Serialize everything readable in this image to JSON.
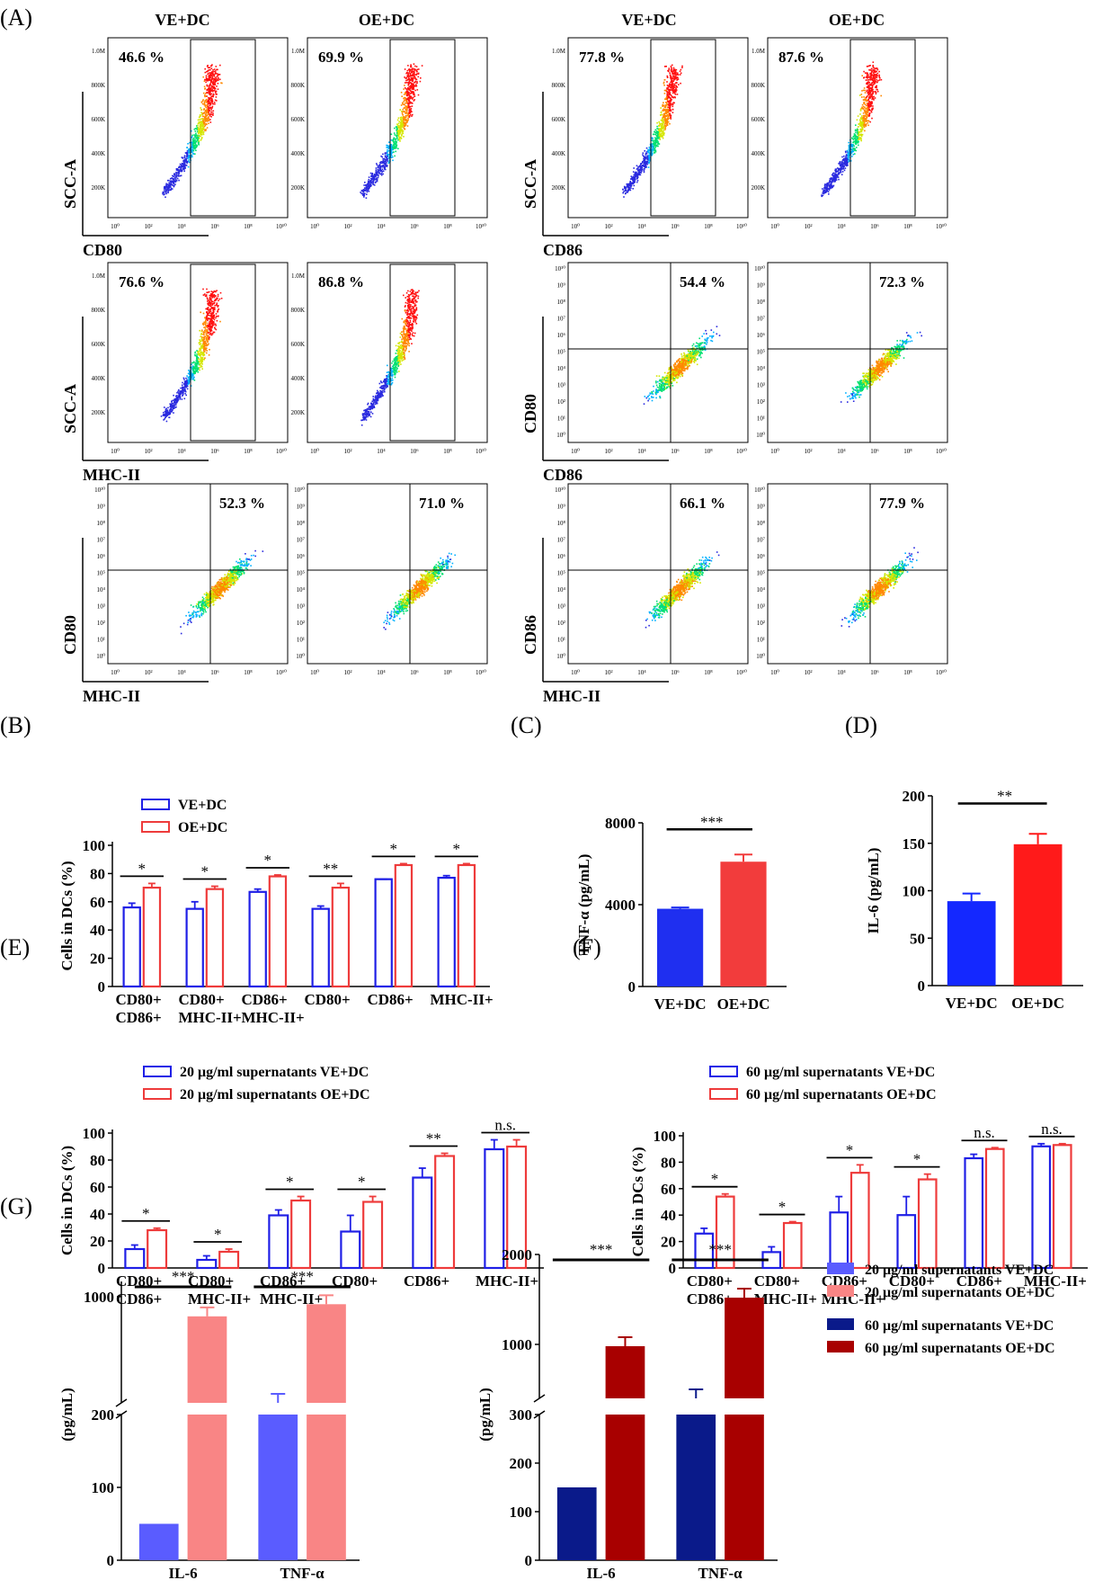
{
  "panel_labels": {
    "A": "(A)",
    "B": "(B)",
    "C": "(C)",
    "D": "(D)",
    "E": "(E)",
    "F": "(F)",
    "G": "(G)"
  },
  "colors": {
    "ve_blue": "#1f1fe6",
    "oe_red": "#ee3b3b",
    "c_blue": "#1f2ff0",
    "c_red": "#f23c3c",
    "d_blue": "#1428ff",
    "d_red": "#ff1a1a",
    "g20_ve": "#5a5cff",
    "g20_oe": "#f98585",
    "g60_ve": "#0a1a8a",
    "g60_oe": "#a80000",
    "flow_dots": "#2a2adf"
  },
  "flow": {
    "group_left": "VE+DC",
    "group_right": "OE+DC",
    "linear_ticks": [
      "1.0M",
      "800K",
      "600K",
      "400K",
      "200K"
    ],
    "log_y_ticks": [
      "10¹⁰",
      "10⁹",
      "10⁸",
      "10⁷",
      "10⁶",
      "10⁵",
      "10⁴",
      "10³",
      "10²",
      "10¹",
      "10⁰"
    ],
    "log_x_ticks": [
      "10⁰",
      "10²",
      "10⁴",
      "10⁶",
      "10⁸",
      "10¹⁰"
    ],
    "ylabel_scc": "SCC-A",
    "ylabel_cd80": "CD80",
    "ylabel_cd86": "CD86",
    "xlabel_cd80": "CD80",
    "xlabel_cd86": "CD86",
    "xlabel_mhc": "MHC-II",
    "plots": [
      {
        "percent": "46.6  %",
        "xlabel": "CD80",
        "type": "scc"
      },
      {
        "percent": "69.9  %",
        "type": "scc"
      },
      {
        "percent": "77.8  %",
        "xlabel": "CD86",
        "type": "scc"
      },
      {
        "percent": "87.6  %",
        "type": "scc"
      },
      {
        "percent": "76.6 %",
        "xlabel": "MHC-II",
        "type": "scc"
      },
      {
        "percent": "86.8 %",
        "type": "scc"
      },
      {
        "percent": "54.4 %",
        "ylabel": "CD80",
        "xlabel": "CD86",
        "type": "quad"
      },
      {
        "percent": "72.3 %",
        "type": "quad"
      },
      {
        "percent": "52.3 %",
        "ylabel": "CD80",
        "xlabel": "MHC-II",
        "type": "quad"
      },
      {
        "percent": "71.0 %",
        "type": "quad"
      },
      {
        "percent": "66.1 %",
        "ylabel": "CD86",
        "xlabel": "MHC-II",
        "type": "quad"
      },
      {
        "percent": "77.9 %",
        "type": "quad"
      }
    ]
  },
  "chart_data": [
    {
      "panel": "B",
      "type": "bar",
      "ylabel": "Cells in DCs (%)",
      "ylim": [
        0,
        100
      ],
      "yticks": [
        "0",
        "20",
        "40",
        "60",
        "80",
        "100"
      ],
      "categories": [
        [
          "CD80+",
          "CD86+"
        ],
        [
          "CD80+",
          "MHC-II+"
        ],
        [
          "CD86+",
          "MHC-II+"
        ],
        [
          "CD80+",
          ""
        ],
        [
          "CD86+",
          ""
        ],
        [
          "MHC-II+",
          ""
        ]
      ],
      "series": [
        {
          "name": "VE+DC",
          "values": [
            56,
            55,
            67,
            55,
            76,
            77
          ],
          "err": [
            3,
            5,
            2,
            2,
            0,
            1.5
          ]
        },
        {
          "name": "OE+DC",
          "values": [
            70,
            69,
            78,
            70,
            86,
            86
          ],
          "err": [
            3,
            2,
            1,
            3,
            1,
            1
          ]
        }
      ],
      "significance": [
        "*",
        "*",
        "*",
        "**",
        "*",
        "*"
      ]
    },
    {
      "panel": "C",
      "type": "bar",
      "ylabel": "TNF-α (pg/mL)",
      "ylim": [
        0,
        8000
      ],
      "yticks": [
        "0",
        "4000",
        "8000"
      ],
      "categories": [
        "VE+DC",
        "OE+DC"
      ],
      "values": [
        3800,
        6100
      ],
      "err": [
        60,
        350
      ],
      "significance": "***"
    },
    {
      "panel": "D",
      "type": "bar",
      "ylabel": "IL-6 (pg/mL)",
      "ylim": [
        0,
        200
      ],
      "yticks": [
        "0",
        "50",
        "100",
        "150",
        "200"
      ],
      "categories": [
        "VE+DC",
        "OE+DC"
      ],
      "values": [
        89,
        149
      ],
      "err": [
        8,
        11
      ],
      "significance": "**"
    },
    {
      "panel": "E",
      "type": "bar",
      "ylabel": "Cells in DCs (%)",
      "ylim": [
        0,
        100
      ],
      "yticks": [
        "0",
        "20",
        "40",
        "60",
        "80",
        "100"
      ],
      "categories": [
        [
          "CD80+",
          "CD86+"
        ],
        [
          "CD80+",
          "MHC-II+"
        ],
        [
          "CD86+",
          "MHC-II+"
        ],
        [
          "CD80+",
          ""
        ],
        [
          "CD86+",
          ""
        ],
        [
          "MHC-II+",
          ""
        ]
      ],
      "series": [
        {
          "name": "20 μg/ml supernatants VE+DC",
          "values": [
            14,
            6,
            39,
            27,
            67,
            88
          ],
          "err": [
            3,
            3,
            4,
            12,
            7,
            7
          ]
        },
        {
          "name": "20 μg/ml supernatants OE+DC",
          "values": [
            28,
            12,
            50,
            49,
            83,
            90
          ],
          "err": [
            1.5,
            2,
            3,
            4,
            2,
            5
          ]
        }
      ],
      "significance": [
        "*",
        "*",
        "*",
        "*",
        "**",
        "n.s."
      ]
    },
    {
      "panel": "F",
      "type": "bar",
      "ylabel": "Cells in DCs (%)",
      "ylim": [
        0,
        100
      ],
      "yticks": [
        "0",
        "20",
        "40",
        "60",
        "80",
        "100"
      ],
      "categories": [
        [
          "CD80+",
          "CD86+"
        ],
        [
          "CD80+",
          "MHC-II+"
        ],
        [
          "CD86+",
          "MHC-II+"
        ],
        [
          "CD80+",
          ""
        ],
        [
          "CD86+",
          ""
        ],
        [
          "MHC-II+",
          ""
        ]
      ],
      "series": [
        {
          "name": "60 μg/ml supernatants VE+DC",
          "values": [
            26,
            12,
            42,
            40,
            83,
            92
          ],
          "err": [
            4,
            4,
            12,
            14,
            3,
            2
          ]
        },
        {
          "name": "60 μg/ml supernatants OE+DC",
          "values": [
            54,
            34,
            72,
            67,
            90,
            93
          ],
          "err": [
            2,
            1,
            6,
            4,
            1,
            1
          ]
        }
      ],
      "significance": [
        "*",
        "*",
        "*",
        "*",
        "n.s.",
        "n.s."
      ]
    },
    {
      "panel": "G-left",
      "type": "bar",
      "ylabel": "(pg/mL)",
      "categories": [
        "IL-6",
        "TNF-α"
      ],
      "broken_axis": {
        "lower": [
          0,
          200
        ],
        "upper_ticks": [
          "1000"
        ],
        "lower_ticks": [
          "0",
          "100",
          "200"
        ]
      },
      "series": [
        {
          "name": "20 μg/ml supernatants VE+DC",
          "values": [
            50,
            280
          ]
        },
        {
          "name": "20 μg/ml supernatants OE+DC",
          "values": [
            870,
            950
          ]
        }
      ],
      "significance": [
        "***",
        "***"
      ]
    },
    {
      "panel": "G-right",
      "type": "bar",
      "ylabel": "(pg/mL)",
      "categories": [
        "IL-6",
        "TNF-α"
      ],
      "broken_axis": {
        "lower": [
          0,
          300
        ],
        "upper_ticks": [
          "1000",
          "2000"
        ],
        "lower_ticks": [
          "0",
          "100",
          "200",
          "300"
        ]
      },
      "series": [
        {
          "name": "60 μg/ml supernatants VE+DC",
          "values": [
            150,
            330
          ]
        },
        {
          "name": "60 μg/ml supernatants OE+DC",
          "values": [
            980,
            1520
          ]
        }
      ],
      "significance": [
        "***",
        "***"
      ]
    }
  ],
  "legend_g": [
    "20 μg/ml supernatants VE+DC",
    "20 μg/ml supernatants OE+DC",
    "60 μg/ml supernatants VE+DC",
    "60 μg/ml supernatants OE+DC"
  ]
}
